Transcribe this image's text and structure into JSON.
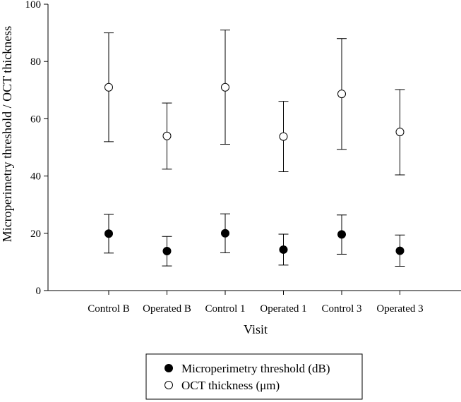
{
  "chart_data": {
    "type": "scatter",
    "title": "",
    "xlabel": "Visit",
    "ylabel": "Microperimetry threshold / OCT thickness",
    "ylim": [
      0,
      100
    ],
    "yticks": [
      0,
      20,
      40,
      60,
      80,
      100
    ],
    "categories": [
      "Control B",
      "Operated B",
      "Control 1",
      "Operated 1",
      "Control 3",
      "Operated 3"
    ],
    "series": [
      {
        "name": "Microperimetry threshold (dB)",
        "marker": "filled-circle",
        "values": [
          19.9,
          13.8,
          20.0,
          14.3,
          19.6,
          13.9
        ],
        "err_low": [
          13.1,
          8.6,
          13.2,
          8.9,
          12.7,
          8.5
        ],
        "err_high": [
          26.6,
          18.9,
          26.8,
          19.7,
          26.4,
          19.4
        ]
      },
      {
        "name": "OCT thickness (μm)",
        "marker": "open-circle",
        "values": [
          71.0,
          54.0,
          71.0,
          53.8,
          68.7,
          55.4
        ],
        "err_low": [
          52.0,
          42.4,
          51.1,
          41.5,
          49.3,
          40.4
        ],
        "err_high": [
          90.0,
          65.5,
          91.0,
          66.1,
          88.0,
          70.2
        ]
      }
    ],
    "legend_position": "bottom-center"
  }
}
